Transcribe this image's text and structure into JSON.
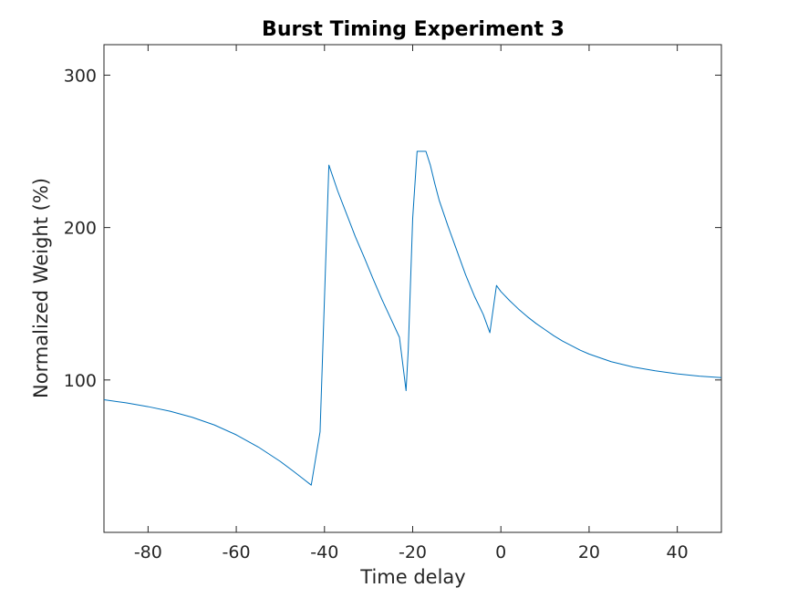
{
  "chart_data": {
    "type": "line",
    "title": "Burst Timing Experiment 3",
    "xlabel": "Time delay",
    "ylabel": "Normalized Weight (%)",
    "xlim": [
      -90,
      50
    ],
    "ylim": [
      0,
      320
    ],
    "xticks": [
      -80,
      -60,
      -40,
      -20,
      0,
      20,
      40
    ],
    "yticks": [
      100,
      200,
      300
    ],
    "grid": false,
    "legend": "none",
    "series": [
      {
        "color": "#0072BD",
        "x": [
          -90,
          -85,
          -80,
          -75,
          -70,
          -65,
          -60,
          -55,
          -50,
          -47,
          -45,
          -43,
          -41,
          -39,
          -37,
          -35,
          -33,
          -31,
          -29,
          -27,
          -25,
          -23,
          -21.5,
          -21,
          -20,
          -19,
          -18,
          -17,
          -16,
          -15,
          -14,
          -12,
          -10,
          -8,
          -6,
          -4,
          -2.5,
          -1,
          0,
          2,
          4,
          6,
          8,
          10,
          12,
          14,
          16,
          18,
          20,
          25,
          30,
          35,
          40,
          45,
          50
        ],
        "values": [
          87,
          85,
          82.5,
          79.5,
          75.5,
          70.5,
          64,
          56,
          46.5,
          40,
          35.5,
          31,
          66,
          241,
          224,
          209,
          194,
          180.5,
          166.5,
          153,
          140.5,
          128,
          93,
          120,
          206,
          250,
          250,
          250,
          241,
          229,
          218,
          201,
          185,
          169,
          155,
          143,
          131,
          162,
          158,
          152,
          146.5,
          141.5,
          137,
          133,
          129,
          125.5,
          122.5,
          119.5,
          117,
          112,
          108.5,
          106,
          104,
          102.5,
          101.5
        ]
      }
    ]
  }
}
